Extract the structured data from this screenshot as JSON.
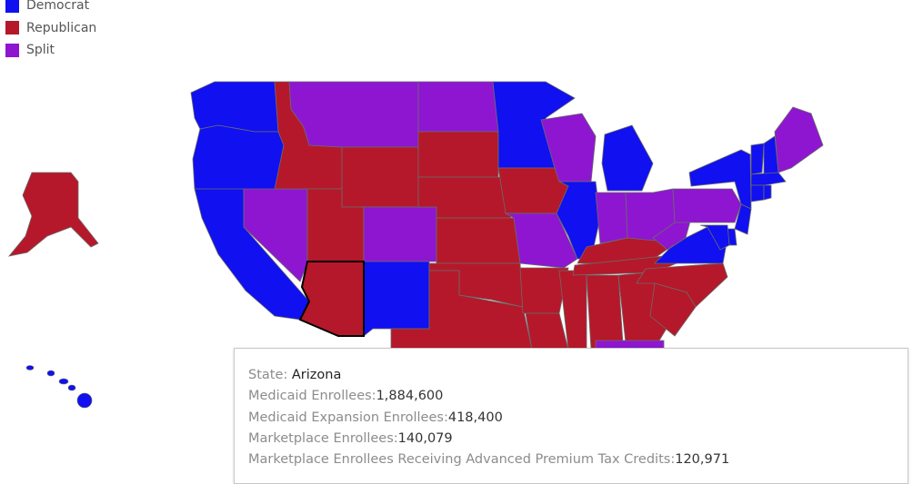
{
  "legend": {
    "items": [
      {
        "label": "Democrat",
        "color": "#1010f0"
      },
      {
        "label": "Republican",
        "color": "#b5182a"
      },
      {
        "label": "Split",
        "color": "#8e16d0"
      }
    ]
  },
  "colors": {
    "democrat": "#1010f0",
    "republican": "#b5182a",
    "split": "#8e16d0",
    "border": "#6b6b6b",
    "highlight_border": "#000000"
  },
  "states": {
    "WA": "democrat",
    "OR": "democrat",
    "CA": "democrat",
    "NV": "split",
    "ID": "republican",
    "MT": "split",
    "WY": "republican",
    "UT": "republican",
    "AZ": "republican",
    "CO": "split",
    "NM": "democrat",
    "ND": "split",
    "SD": "republican",
    "NE": "republican",
    "KS": "republican",
    "OK": "republican",
    "TX": "republican",
    "MN": "democrat",
    "IA": "republican",
    "MO": "split",
    "AR": "republican",
    "LA": "republican",
    "WI": "split",
    "IL": "democrat",
    "MS": "republican",
    "MI": "democrat",
    "IN": "split",
    "KY": "republican",
    "TN": "republican",
    "AL": "republican",
    "GA": "republican",
    "FL": "split",
    "OH": "split",
    "WV": "split",
    "VA": "democrat",
    "NC": "republican",
    "SC": "republican",
    "PA": "split",
    "NY": "democrat",
    "VT": "democrat",
    "NH": "democrat",
    "ME": "split",
    "MA": "democrat",
    "CT": "democrat",
    "RI": "democrat",
    "NJ": "democrat",
    "DE": "democrat",
    "MD": "democrat",
    "AK": "republican",
    "HI": "democrat"
  },
  "selected_state": "AZ",
  "tooltip": {
    "state_label": "State: ",
    "state_value": "Arizona",
    "medicaid_label": "Medicaid Enrollees:",
    "medicaid_value": "1,884,600",
    "expansion_label": "Medicaid Expansion Enrollees:",
    "expansion_value": "418,400",
    "marketplace_label": "Marketplace Enrollees:",
    "marketplace_value": "140,079",
    "aptc_label": "Marketplace Enrollees Receiving Advanced Premium Tax Credits:",
    "aptc_value": "120,971"
  }
}
